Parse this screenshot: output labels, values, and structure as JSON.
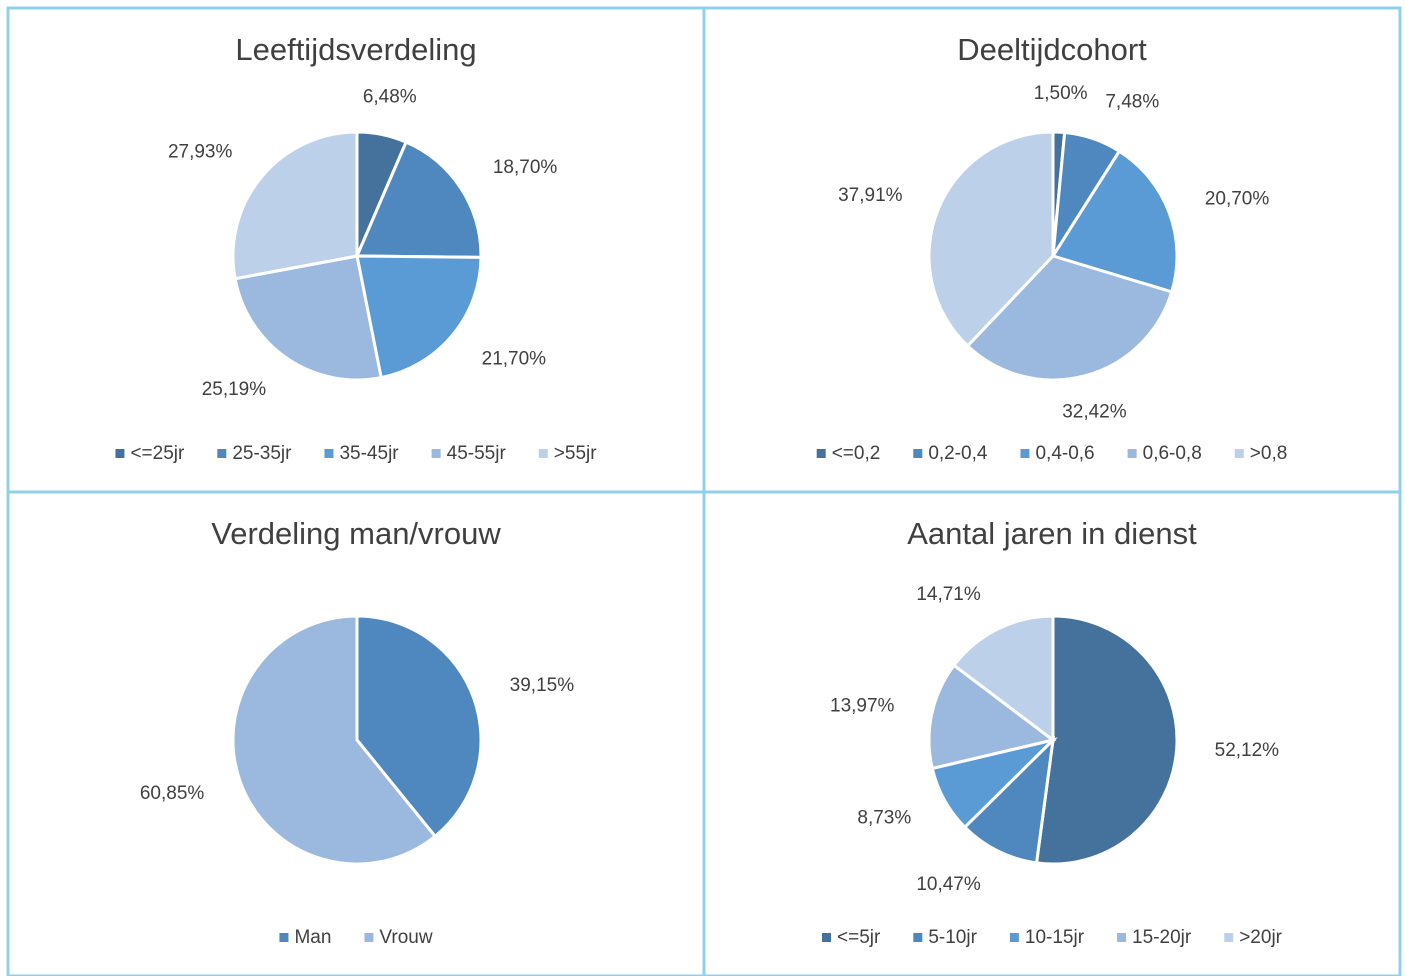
{
  "chart_data": [
    {
      "type": "pie",
      "title": "Leeftijdsverdeling",
      "categories": [
        "<=25jr",
        "25-35jr",
        "35-45jr",
        "45-55jr",
        ">55jr"
      ],
      "values": [
        6.48,
        18.7,
        21.7,
        25.19,
        27.93
      ],
      "value_labels": [
        "6,48%",
        "18,70%",
        "21,70%",
        "25,19%",
        "27,93%"
      ],
      "colors": [
        "#44729d",
        "#4e88bf",
        "#5b9bd5",
        "#9bb9de",
        "#bdd0ea"
      ],
      "legend": "bottom"
    },
    {
      "type": "pie",
      "title": "Deeltijdcohort",
      "categories": [
        "<=0,2",
        "0,2-0,4",
        "0,4-0,6",
        "0,6-0,8",
        ">0,8"
      ],
      "values": [
        1.5,
        7.48,
        20.7,
        32.42,
        37.91
      ],
      "value_labels": [
        "1,50%",
        "7,48%",
        "20,70%",
        "32,42%",
        "37,91%"
      ],
      "colors": [
        "#44729d",
        "#4e88bf",
        "#5b9bd5",
        "#9bb9de",
        "#bdd0ea"
      ],
      "legend": "bottom"
    },
    {
      "type": "pie",
      "title": "Verdeling man/vrouw",
      "categories": [
        "Man",
        "Vrouw"
      ],
      "values": [
        39.15,
        60.85
      ],
      "value_labels": [
        "39,15%",
        "60,85%"
      ],
      "colors": [
        "#4e88bf",
        "#9bb9de"
      ],
      "legend": "bottom"
    },
    {
      "type": "pie",
      "title": "Aantal jaren in dienst",
      "categories": [
        "<=5jr",
        "5-10jr",
        "10-15jr",
        "15-20jr",
        ">20jr"
      ],
      "values": [
        52.12,
        10.47,
        8.73,
        13.97,
        14.71
      ],
      "value_labels": [
        "52,12%",
        "10,47%",
        "8,73%",
        "13,97%",
        "14,71%"
      ],
      "colors": [
        "#44729d",
        "#4e88bf",
        "#5b9bd5",
        "#9bb9de",
        "#bdd0ea"
      ],
      "legend": "bottom"
    }
  ]
}
